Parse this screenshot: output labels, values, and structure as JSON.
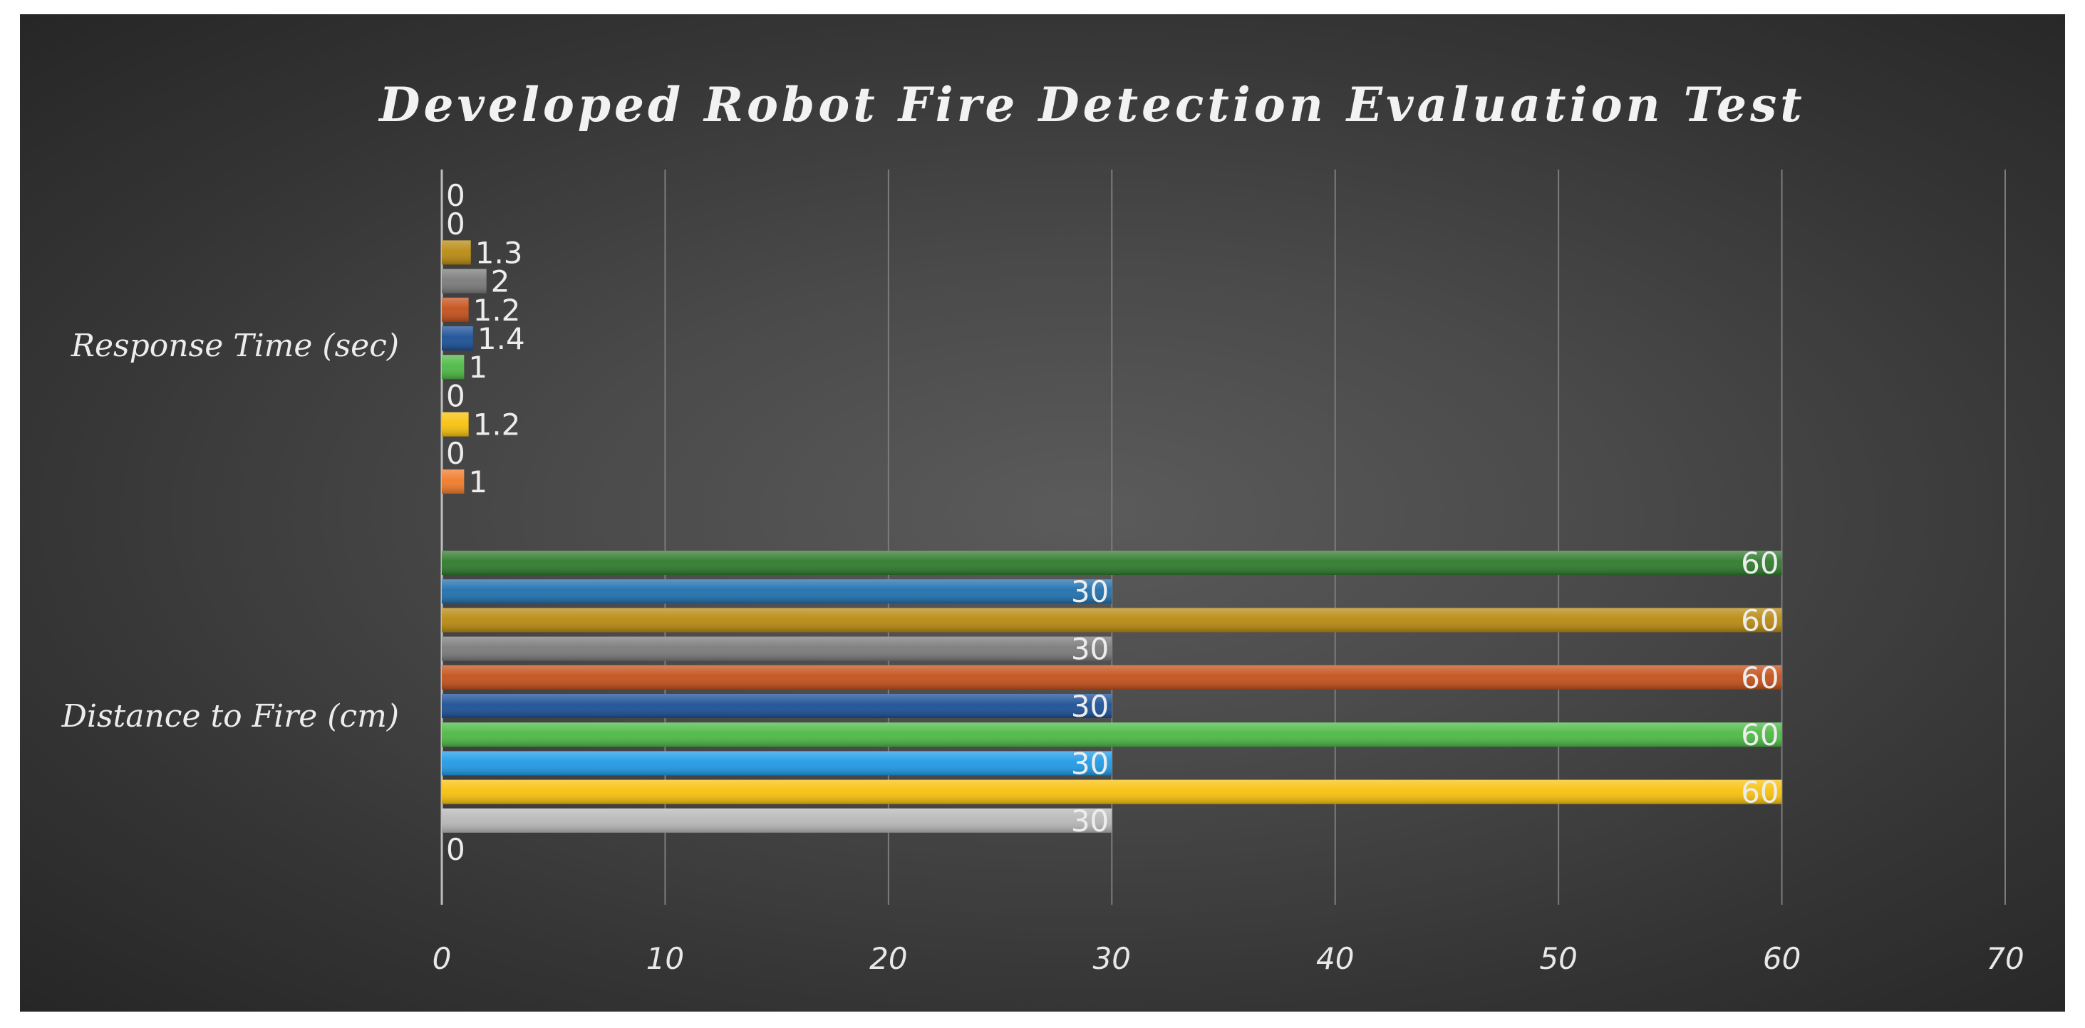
{
  "chart_data": {
    "type": "bar",
    "orientation": "horizontal",
    "title": "Developed Robot Fire Detection Evaluation Test",
    "categories": [
      "Distance to Fire (cm)",
      "Response Time (sec)"
    ],
    "series": [
      {
        "values": [
          0,
          1
        ],
        "color": "#f07a28"
      },
      {
        "values": [
          30,
          0
        ],
        "color": "#b8b8b8"
      },
      {
        "values": [
          60,
          1.2
        ],
        "color": "#f8c10c"
      },
      {
        "values": [
          30,
          0
        ],
        "color": "#1f9ae6"
      },
      {
        "values": [
          60,
          1
        ],
        "color": "#4cb944"
      },
      {
        "values": [
          30,
          1.4
        ],
        "color": "#1a4f96"
      },
      {
        "values": [
          60,
          1.2
        ],
        "color": "#c4501a"
      },
      {
        "values": [
          30,
          2
        ],
        "color": "#7a7a7a"
      },
      {
        "values": [
          60,
          1.3
        ],
        "color": "#b88a10"
      },
      {
        "values": [
          30,
          0
        ],
        "color": "#1e6fae"
      },
      {
        "values": [
          60,
          0
        ],
        "color": "#2f7a2c"
      }
    ],
    "x_ticks": [
      "0",
      "10",
      "20",
      "30",
      "40",
      "50",
      "60",
      "70"
    ],
    "xlim": [
      0,
      70
    ],
    "grid": true,
    "data_labels": true,
    "legend": "none"
  }
}
